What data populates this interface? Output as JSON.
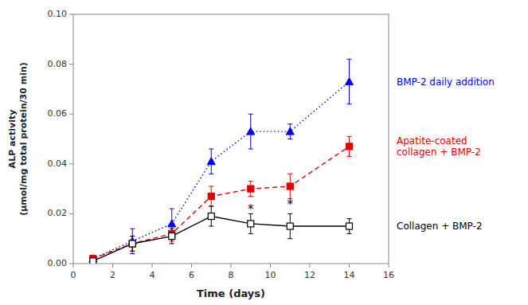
{
  "chart_data": {
    "type": "line",
    "x_label": "Time (days)",
    "y_label": [
      "ALP activity",
      "(μmol/mg total protein/30 min)"
    ],
    "x": [
      1,
      3,
      5,
      7,
      9,
      11,
      14
    ],
    "series": [
      {
        "name": "BMP-2 daily addition",
        "color": "#0000EE",
        "marker": "triangle",
        "line_style": "dotted",
        "values": [
          0.002,
          0.009,
          0.016,
          0.041,
          0.053,
          0.053,
          0.073
        ],
        "errors": [
          0.001,
          0.005,
          0.006,
          0.005,
          0.007,
          0.003,
          0.009
        ]
      },
      {
        "name": [
          "Apatite-coated",
          "collagen + BMP-2"
        ],
        "color": "#DD0000",
        "marker": "square",
        "line_style": "dashed",
        "values": [
          0.002,
          0.008,
          0.012,
          0.027,
          0.03,
          0.031,
          0.047
        ],
        "errors": [
          0.001,
          0.003,
          0.003,
          0.004,
          0.003,
          0.005,
          0.004
        ]
      },
      {
        "name": "Collagen + BMP-2",
        "color": "#000000",
        "marker": "open-square",
        "line_style": "solid",
        "values": [
          0.001,
          0.008,
          0.011,
          0.019,
          0.016,
          0.015,
          0.015
        ],
        "errors": [
          0.001,
          0.003,
          0.003,
          0.004,
          0.004,
          0.005,
          0.003
        ]
      }
    ],
    "annotations": [
      {
        "text": "*",
        "x": 9,
        "y": 0.024
      },
      {
        "text": "*",
        "x": 11,
        "y": 0.026
      }
    ],
    "xlim": [
      0,
      16
    ],
    "ylim": [
      0,
      0.1
    ],
    "xticks": [
      0,
      2,
      4,
      6,
      8,
      10,
      12,
      14,
      16
    ],
    "yticks": [
      {
        "value": 0.0,
        "label": "0.00"
      },
      {
        "value": 0.02,
        "label": "0.02"
      },
      {
        "value": 0.04,
        "label": "0.04"
      },
      {
        "value": 0.06,
        "label": "0.06"
      },
      {
        "value": 0.08,
        "label": "0.08"
      },
      {
        "value": 0.1,
        "label": "0.10"
      }
    ],
    "grid": false
  }
}
